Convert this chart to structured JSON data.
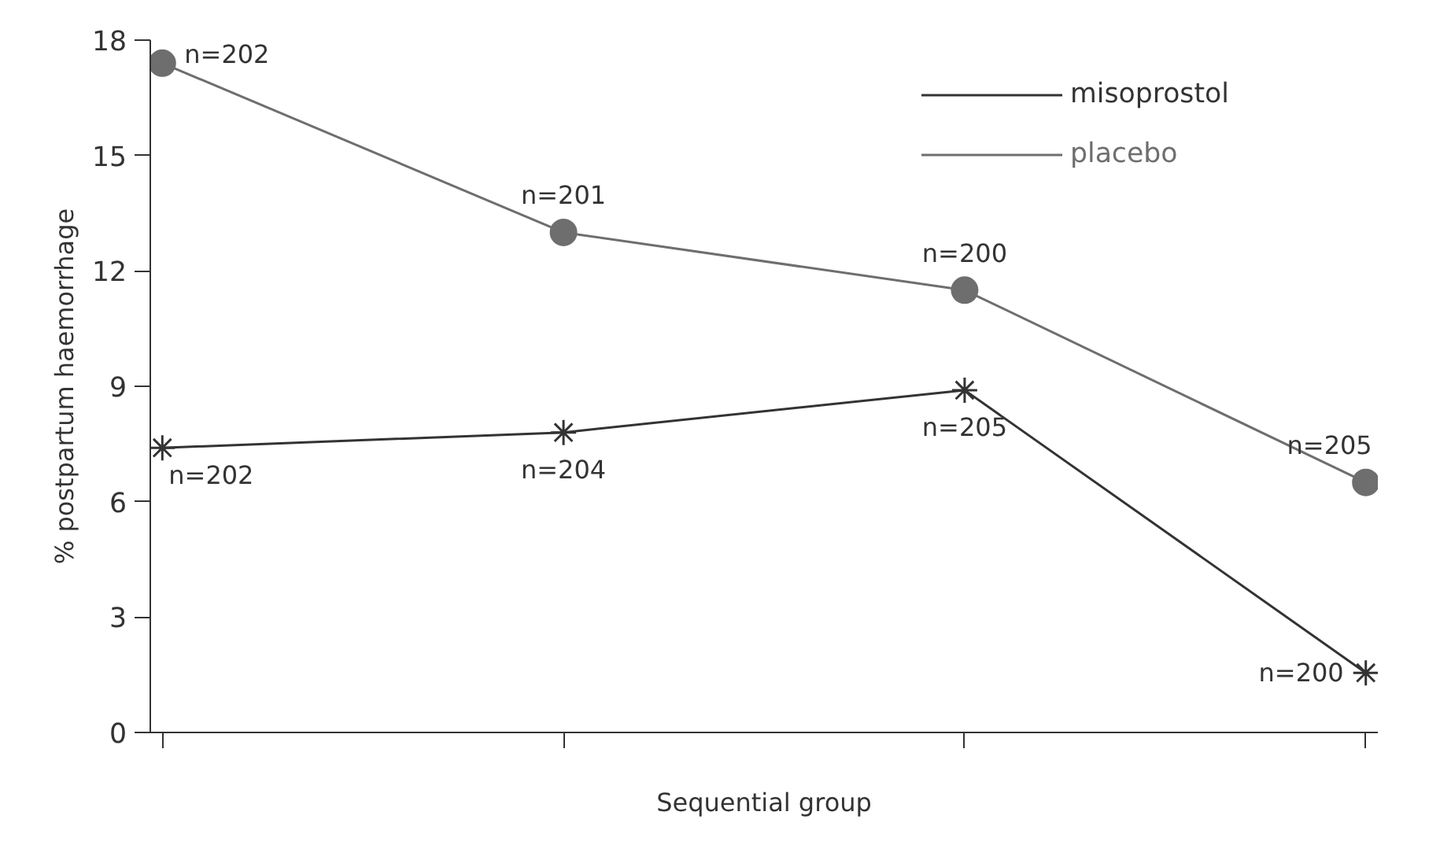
{
  "chart_data": {
    "type": "line",
    "xlabel": "Sequential group",
    "ylabel": "% postpartum haemorrhage",
    "categories": [
      null,
      null,
      null,
      null
    ],
    "ylim": [
      0,
      18
    ],
    "yticks": [
      0,
      3,
      6,
      9,
      12,
      15,
      18
    ],
    "grid": false,
    "legend": "top right",
    "series": [
      {
        "name": "misoprostol",
        "color": "#333333",
        "marker": "cross",
        "values": [
          7.4,
          7.8,
          8.9,
          1.55
        ]
      },
      {
        "name": "placebo",
        "color": "#6e6e6e",
        "marker": "circle",
        "values": [
          17.4,
          13.0,
          11.5,
          6.5
        ]
      }
    ],
    "annotations": [
      "n=202",
      "n=204",
      "n=205",
      "n=200",
      "n=202",
      "n=201",
      "n=200",
      "n=205"
    ]
  }
}
